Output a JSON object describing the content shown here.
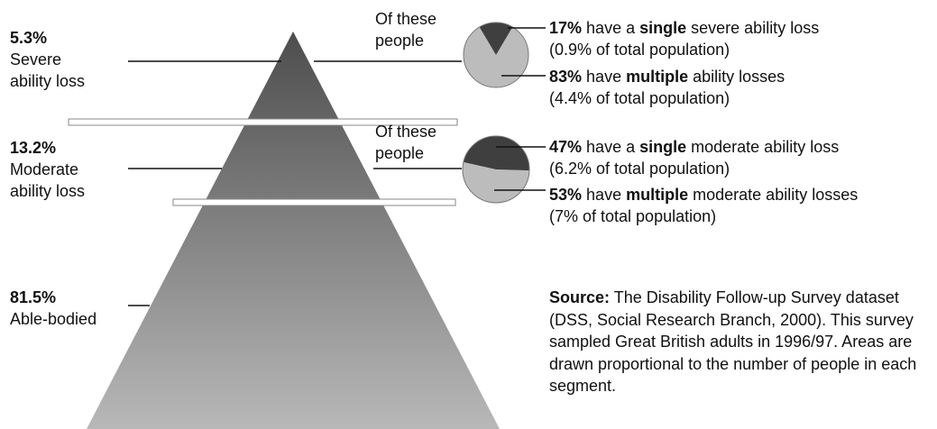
{
  "segments": [
    {
      "key": "severe",
      "percent": "5.3%",
      "label_line1": "Severe",
      "label_line2": "ability loss",
      "share": 5.3
    },
    {
      "key": "moderate",
      "percent": "13.2%",
      "label_line1": "Moderate",
      "label_line2": "ability loss",
      "share": 13.2
    },
    {
      "key": "able",
      "percent": "81.5%",
      "label_line1": "Able-bodied",
      "share": 81.5
    }
  ],
  "breakdowns": [
    {
      "key": "severe",
      "caption_line1": "Of these",
      "caption_line2": "people",
      "pie": {
        "single_share": 17,
        "multiple_share": 83
      },
      "items": [
        {
          "pct": "17%",
          "pre": "have a",
          "emph": "single",
          "post": "severe ability loss",
          "detail": "(0.9% of total population)"
        },
        {
          "pct": "83%",
          "pre": "have",
          "emph": "multiple",
          "post": "ability losses",
          "detail": "(4.4% of total population)"
        }
      ]
    },
    {
      "key": "moderate",
      "caption_line1": "Of these",
      "caption_line2": "people",
      "pie": {
        "single_share": 47,
        "multiple_share": 53
      },
      "items": [
        {
          "pct": "47%",
          "pre": "have a",
          "emph": "single",
          "post": "moderate ability loss",
          "detail": "(6.2% of total population)"
        },
        {
          "pct": "53%",
          "pre": "have",
          "emph": "multiple",
          "post": "moderate ability losses",
          "detail": "(7% of total population)"
        }
      ]
    }
  ],
  "source": {
    "label": "Source:",
    "text": "The Disability Follow-up Survey dataset (DSS, Social Research Branch, 2000). This survey sampled Great British adults in 1996/97. Areas are drawn proportional to the number of people in each segment."
  },
  "colors": {
    "apex_dark": "#4d4d4d",
    "base_light": "#b8b8b8",
    "pie_single": "#3f3f3f",
    "pie_multiple": "#bcbcbc",
    "text": "#111111"
  }
}
